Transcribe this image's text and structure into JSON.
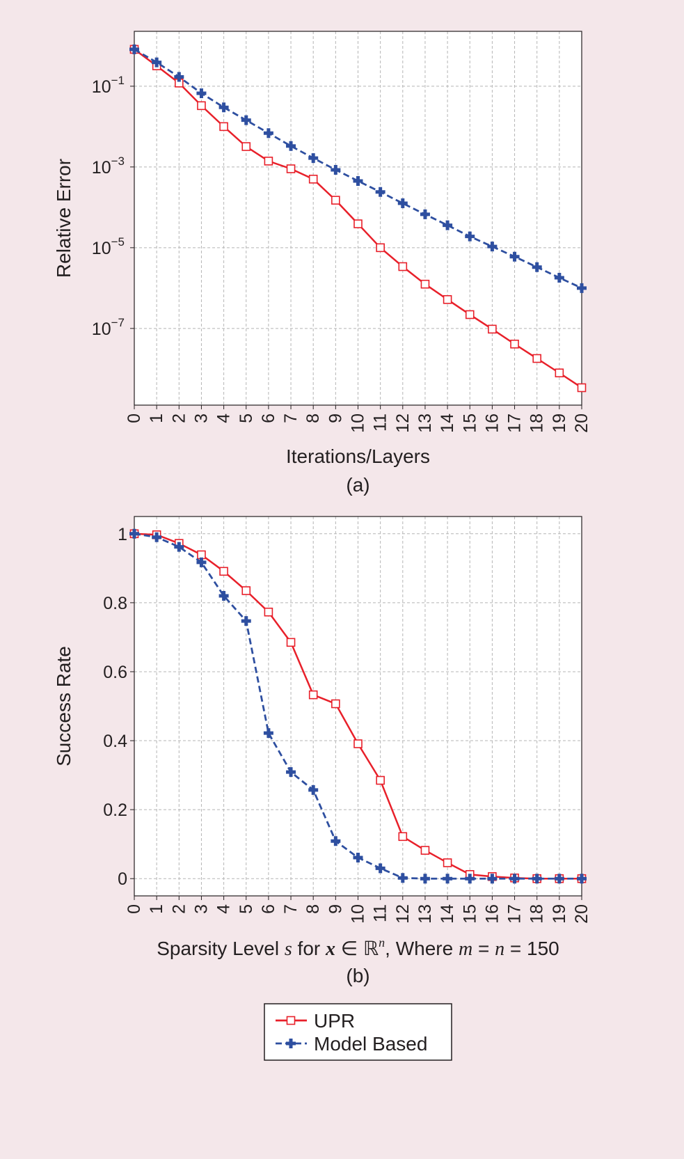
{
  "colors": {
    "upr": "#e8202a",
    "model": "#2e4fa0",
    "background": "#f4e7ea"
  },
  "chart_data": [
    {
      "type": "line",
      "panel_label": "(a)",
      "xlabel": "Iterations/Layers",
      "ylabel": "Relative Error",
      "yscale": "log",
      "xlim": [
        0,
        20
      ],
      "ylim_log10": [
        -8.9,
        0.36
      ],
      "x": [
        0,
        1,
        2,
        3,
        4,
        5,
        6,
        7,
        8,
        9,
        10,
        11,
        12,
        13,
        14,
        15,
        16,
        17,
        18,
        19,
        20
      ],
      "xticks": [
        "0",
        "1",
        "2",
        "3",
        "4",
        "5",
        "6",
        "7",
        "8",
        "9",
        "10",
        "11",
        "12",
        "13",
        "14",
        "15",
        "16",
        "17",
        "18",
        "19",
        "20"
      ],
      "yticks": [
        {
          "base": "10",
          "exp": "−1",
          "log": -1
        },
        {
          "base": "10",
          "exp": "−3",
          "log": -3
        },
        {
          "base": "10",
          "exp": "−5",
          "log": -5
        },
        {
          "base": "10",
          "exp": "−7",
          "log": -7
        }
      ],
      "grid": true,
      "series": [
        {
          "name": "UPR",
          "values": [
            0.82,
            0.32,
            0.12,
            0.033,
            0.01,
            0.0032,
            0.0014,
            0.0009,
            0.0005,
            0.00015,
            3.9e-05,
            1e-05,
            3.4e-06,
            1.25e-06,
            5.2e-07,
            2.2e-07,
            9.6e-08,
            4.1e-08,
            1.8e-08,
            7.9e-09,
            3.4e-09
          ]
        },
        {
          "name": "Model Based",
          "values": [
            0.82,
            0.39,
            0.17,
            0.067,
            0.03,
            0.0144,
            0.0069,
            0.0033,
            0.00166,
            0.00085,
            0.00045,
            0.00024,
            0.000126,
            6.7e-05,
            3.6e-05,
            1.9e-05,
            1.07e-05,
            6e-06,
            3.3e-06,
            1.8e-06,
            1e-06
          ]
        }
      ]
    },
    {
      "type": "line",
      "panel_label": "(b)",
      "xlabel_parts": [
        "Sparsity Level ",
        "s",
        " for ",
        "x",
        " ∈ ℝ",
        "n",
        ", Where ",
        "m",
        " = ",
        "n",
        " = 150"
      ],
      "ylabel": "Success Rate",
      "yscale": "linear",
      "xlim": [
        0,
        20
      ],
      "ylim": [
        -0.05,
        1.05
      ],
      "x": [
        0,
        1,
        2,
        3,
        4,
        5,
        6,
        7,
        8,
        9,
        10,
        11,
        12,
        13,
        14,
        15,
        16,
        17,
        18,
        19,
        20
      ],
      "xticks": [
        "0",
        "1",
        "2",
        "3",
        "4",
        "5",
        "6",
        "7",
        "8",
        "9",
        "10",
        "11",
        "12",
        "13",
        "14",
        "15",
        "16",
        "17",
        "18",
        "19",
        "20"
      ],
      "yticks": [
        {
          "label": "0",
          "v": 0
        },
        {
          "label": "0.2",
          "v": 0.2
        },
        {
          "label": "0.4",
          "v": 0.4
        },
        {
          "label": "0.6",
          "v": 0.6
        },
        {
          "label": "0.8",
          "v": 0.8
        },
        {
          "label": "1",
          "v": 1
        }
      ],
      "grid": true,
      "series": [
        {
          "name": "UPR",
          "values": [
            1.0,
            0.997,
            0.972,
            0.939,
            0.891,
            0.835,
            0.773,
            0.685,
            0.533,
            0.507,
            0.391,
            0.285,
            0.122,
            0.082,
            0.046,
            0.012,
            0.006,
            0.002,
            0,
            0,
            0
          ]
        },
        {
          "name": "Model Based",
          "values": [
            1.0,
            0.99,
            0.962,
            0.917,
            0.82,
            0.747,
            0.422,
            0.309,
            0.257,
            0.109,
            0.061,
            0.03,
            0.002,
            0,
            0,
            0,
            0,
            0,
            0,
            0,
            0
          ]
        }
      ]
    }
  ],
  "legend": {
    "placement": "bottom-center",
    "items": [
      "UPR",
      "Model Based"
    ]
  }
}
